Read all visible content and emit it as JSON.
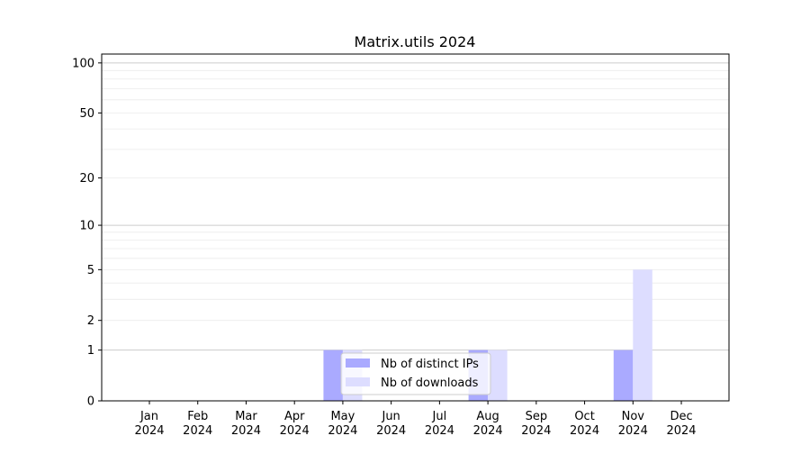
{
  "chart_data": {
    "type": "bar",
    "title": "Matrix.utils 2024",
    "xlabel": "",
    "ylabel": "",
    "yscale": "log(1+y)",
    "ylim": [
      0,
      113
    ],
    "yticks": [
      0,
      1,
      2,
      5,
      10,
      20,
      50,
      100
    ],
    "grid": true,
    "legend_placement": "lower-center",
    "categories": [
      "Jan\n2024",
      "Feb\n2024",
      "Mar\n2024",
      "Apr\n2024",
      "May\n2024",
      "Jun\n2024",
      "Jul\n2024",
      "Aug\n2024",
      "Sep\n2024",
      "Oct\n2024",
      "Nov\n2024",
      "Dec\n2024"
    ],
    "series": [
      {
        "name": "Nb of distinct IPs",
        "color": "#aaaaff",
        "values": [
          0,
          0,
          0,
          0,
          1,
          0,
          0,
          1,
          0,
          0,
          1,
          0
        ]
      },
      {
        "name": "Nb of downloads",
        "color": "#ddddff",
        "values": [
          0,
          0,
          0,
          0,
          1,
          0,
          0,
          1,
          0,
          0,
          5,
          0
        ]
      }
    ]
  }
}
